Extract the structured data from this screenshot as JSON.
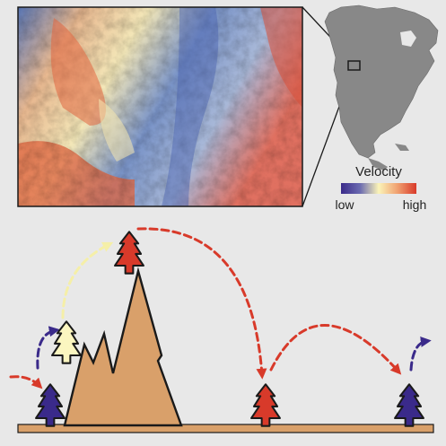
{
  "legend": {
    "title": "Velocity",
    "low_label": "low",
    "high_label": "high",
    "gradient_colors": [
      "#3a2a8a",
      "#6a6ab0",
      "#fbf4b8",
      "#f0a070",
      "#d83a2a"
    ]
  },
  "colors": {
    "background": "#e8e8e8",
    "mountain": "#d9a06a",
    "ground": "#d9a06a",
    "tree_red": "#d83a2a",
    "tree_purple": "#3a2a8a",
    "tree_pale": "#fbf6c0",
    "arrow_red": "#d83a2a",
    "arrow_purple": "#3a2a8a",
    "arrow_pale": "#f5efa8",
    "map_land": "#888888"
  },
  "trees": [
    {
      "name": "tree-purple-left",
      "color": "purple"
    },
    {
      "name": "tree-pale-slope",
      "color": "pale"
    },
    {
      "name": "tree-red-summit",
      "color": "red"
    },
    {
      "name": "tree-red-middle",
      "color": "red"
    },
    {
      "name": "tree-purple-right",
      "color": "purple"
    }
  ]
}
